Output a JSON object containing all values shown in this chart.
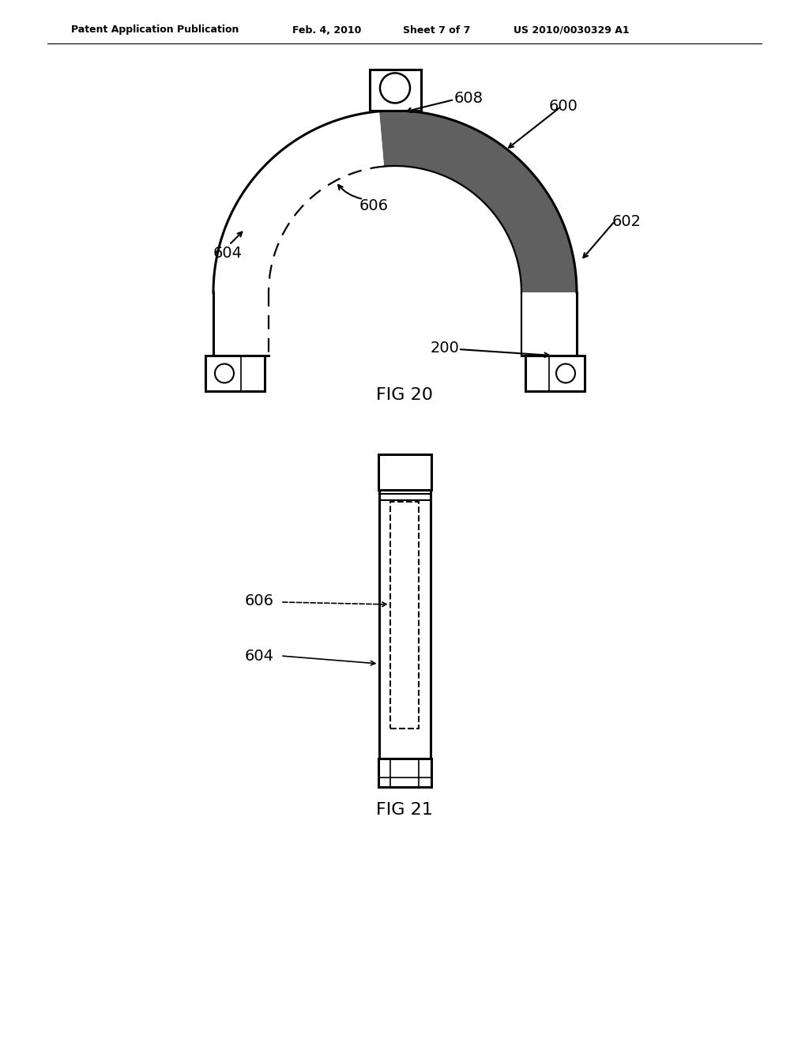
{
  "bg_color": "#ffffff",
  "header_text": "Patent Application Publication",
  "header_date": "Feb. 4, 2010",
  "header_sheet": "Sheet 7 of 7",
  "header_patent": "US 2010/0030329 A1",
  "fig20_label": "FIG 20",
  "fig21_label": "FIG 21"
}
